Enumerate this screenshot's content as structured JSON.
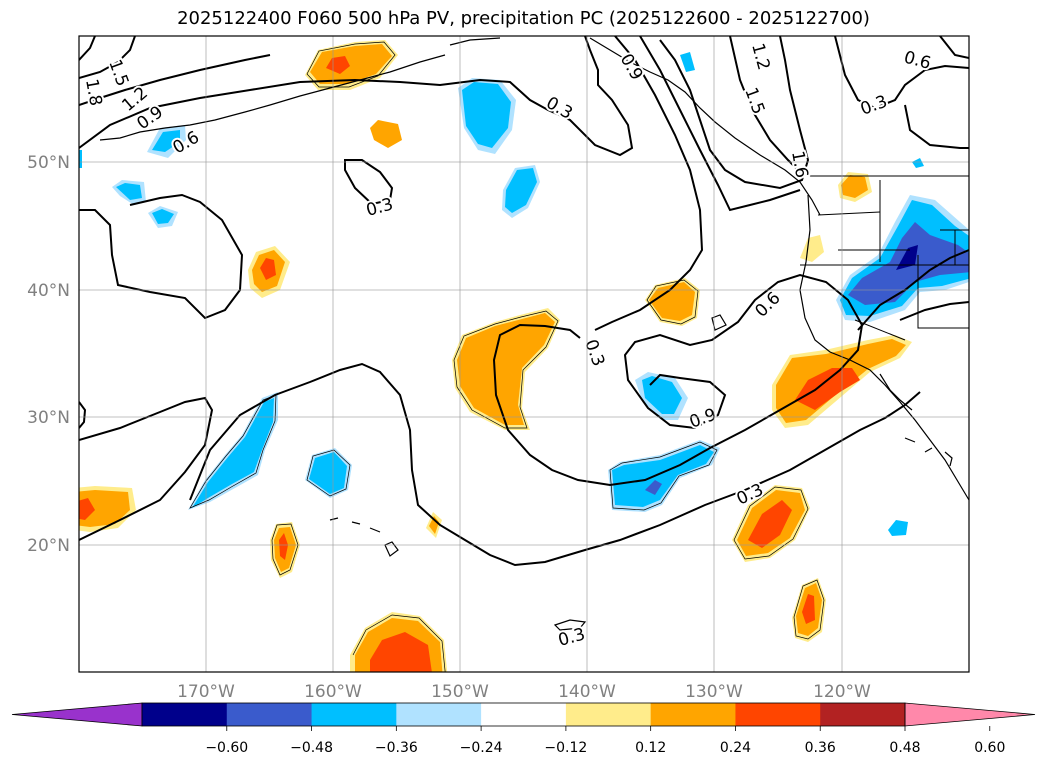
{
  "title": "2025122400 F060 500 hPa PV, precipitation PC (2025122600 - 2025122700)",
  "lat_labels": [
    "50°N",
    "40°N",
    "30°N",
    "20°N"
  ],
  "lon_labels": [
    "170°W",
    "160°W",
    "150°W",
    "140°W",
    "130°W",
    "120°W"
  ],
  "contour_labels": [
    "1.5",
    "1.8",
    "1.2",
    "0.9",
    "0.6",
    "0.3",
    "0.3",
    "0.3",
    "1.2",
    "1.5",
    "0.6",
    "0.3",
    "0.9",
    "0.3",
    "0.3",
    "0.6",
    "0.9",
    "1.6"
  ],
  "colorbar": {
    "colors": [
      "#9932cc",
      "#00008b",
      "#3a5bcc",
      "#00bfff",
      "#b0e2ff",
      "#ffffff",
      "#ffec8b",
      "#ffa500",
      "#ff4500",
      "#b22222",
      "#ff88aa"
    ],
    "tick_labels": [
      "−0.60",
      "−0.48",
      "−0.36",
      "−0.24",
      "−0.12",
      "0.12",
      "0.24",
      "0.36",
      "0.48",
      "0.60"
    ]
  }
}
